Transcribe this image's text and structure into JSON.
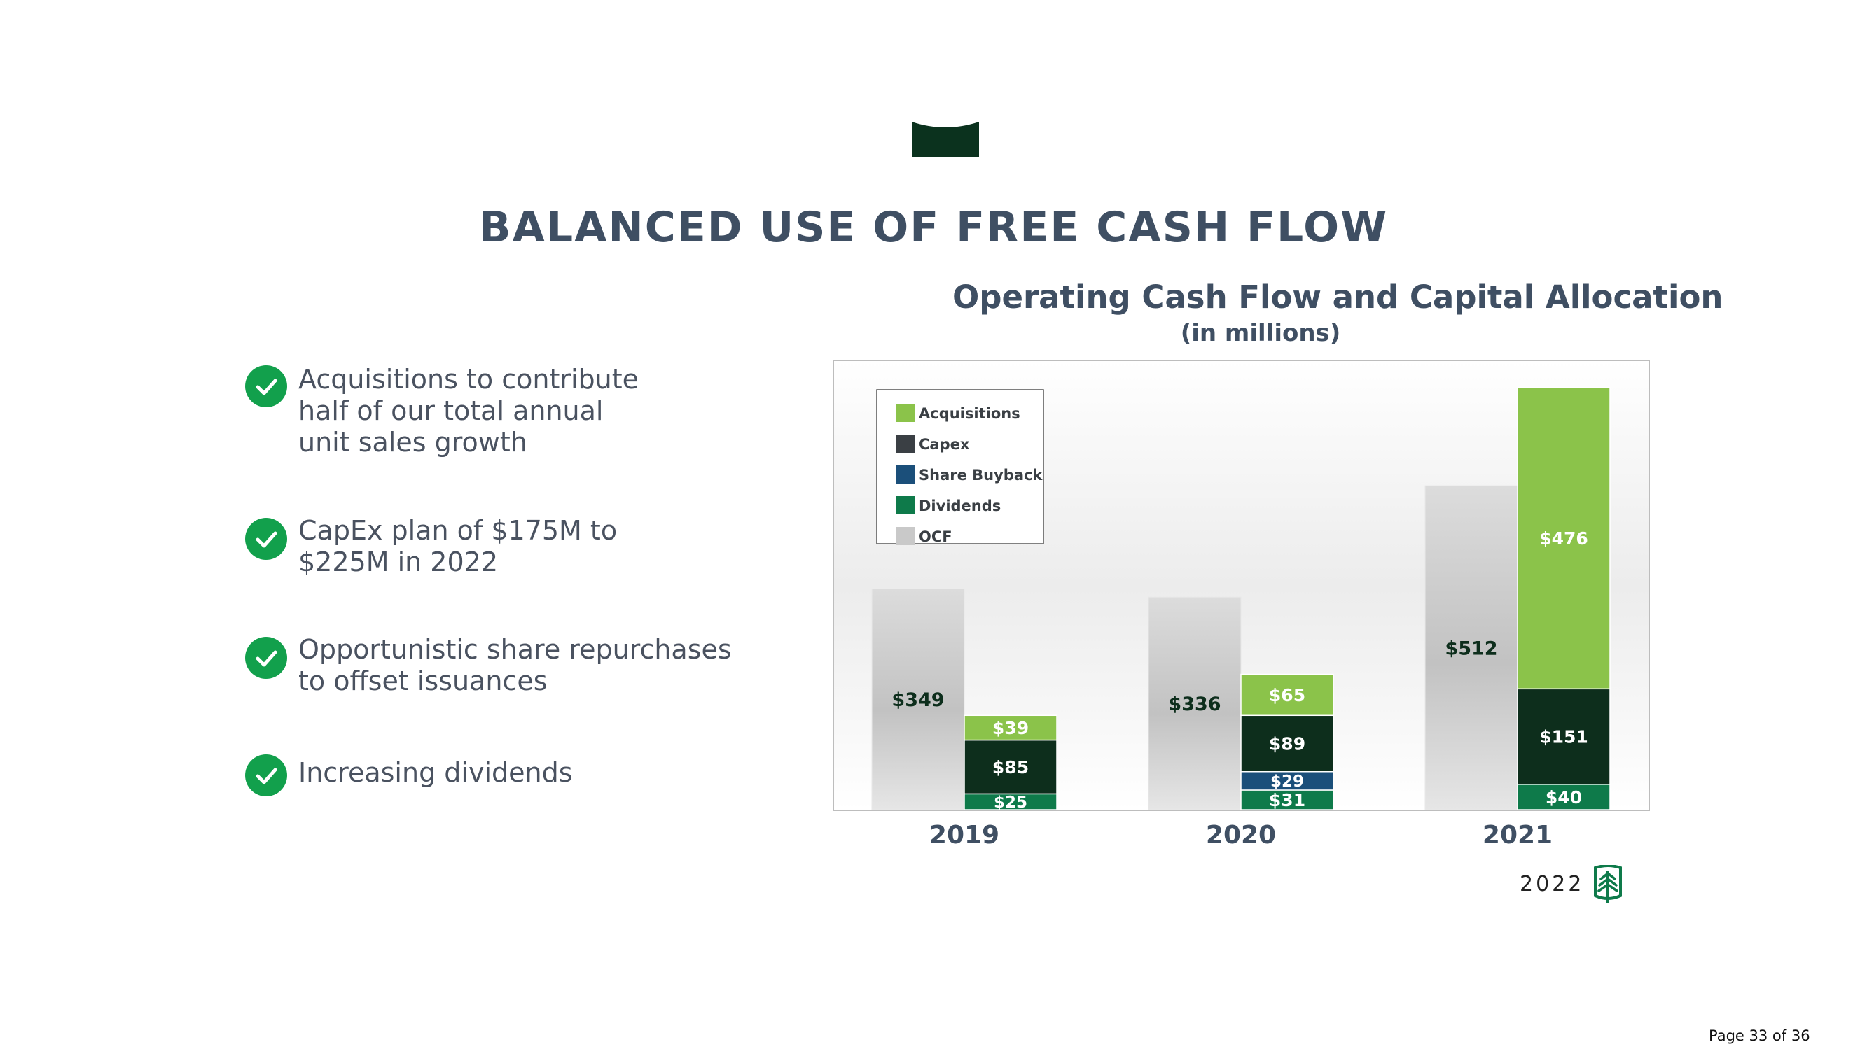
{
  "title": "BALANCED USE OF FREE CASH FLOW",
  "bullets": [
    {
      "text": "Acquisitions to contribute\nhalf of our total annual\nunit sales growth"
    },
    {
      "text": "CapEx plan of $175M to\n$225M in 2022"
    },
    {
      "text": "Opportunistic share repurchases\nto offset issuances"
    },
    {
      "text": "Increasing dividends"
    }
  ],
  "footer": {
    "year": "2022",
    "page": "Page 33 of 36"
  },
  "colors": {
    "acquisitions": "#8bc34a",
    "capex": "#0d2e1c",
    "buyback": "#1b4f7a",
    "dividends": "#0e7a4a",
    "ocf": "#c9c9c9",
    "title": "#3f4f63",
    "check": "#12a04c"
  },
  "icons": [
    "check-circle-icon",
    "tree-logo-icon",
    "banner-logo-icon"
  ],
  "chart_data": {
    "type": "bar",
    "title": "Operating Cash Flow and Capital Allocation",
    "subtitle": "(in millions)",
    "categories": [
      "2019",
      "2020",
      "2021"
    ],
    "legend_position": "top-left",
    "legend": [
      "Acquisitions",
      "Capex",
      "Share Buyback",
      "Dividends",
      "OCF"
    ],
    "ocf": {
      "name": "OCF",
      "values": [
        349,
        336,
        512
      ],
      "labels": [
        "$349",
        "$336",
        "$512"
      ]
    },
    "stack": [
      {
        "name": "Dividends",
        "values": [
          25,
          31,
          40
        ],
        "labels": [
          "$25",
          "$31",
          "$40"
        ]
      },
      {
        "name": "Share Buyback",
        "values": [
          0,
          29,
          0
        ],
        "labels": [
          "",
          "$29",
          ""
        ]
      },
      {
        "name": "Capex",
        "values": [
          85,
          89,
          151
        ],
        "labels": [
          "$85",
          "$89",
          "$151"
        ]
      },
      {
        "name": "Acquisitions",
        "values": [
          39,
          65,
          476
        ],
        "labels": [
          "$39",
          "$65",
          "$476"
        ]
      }
    ],
    "ylim": [
      0,
      710
    ],
    "grid": false
  }
}
